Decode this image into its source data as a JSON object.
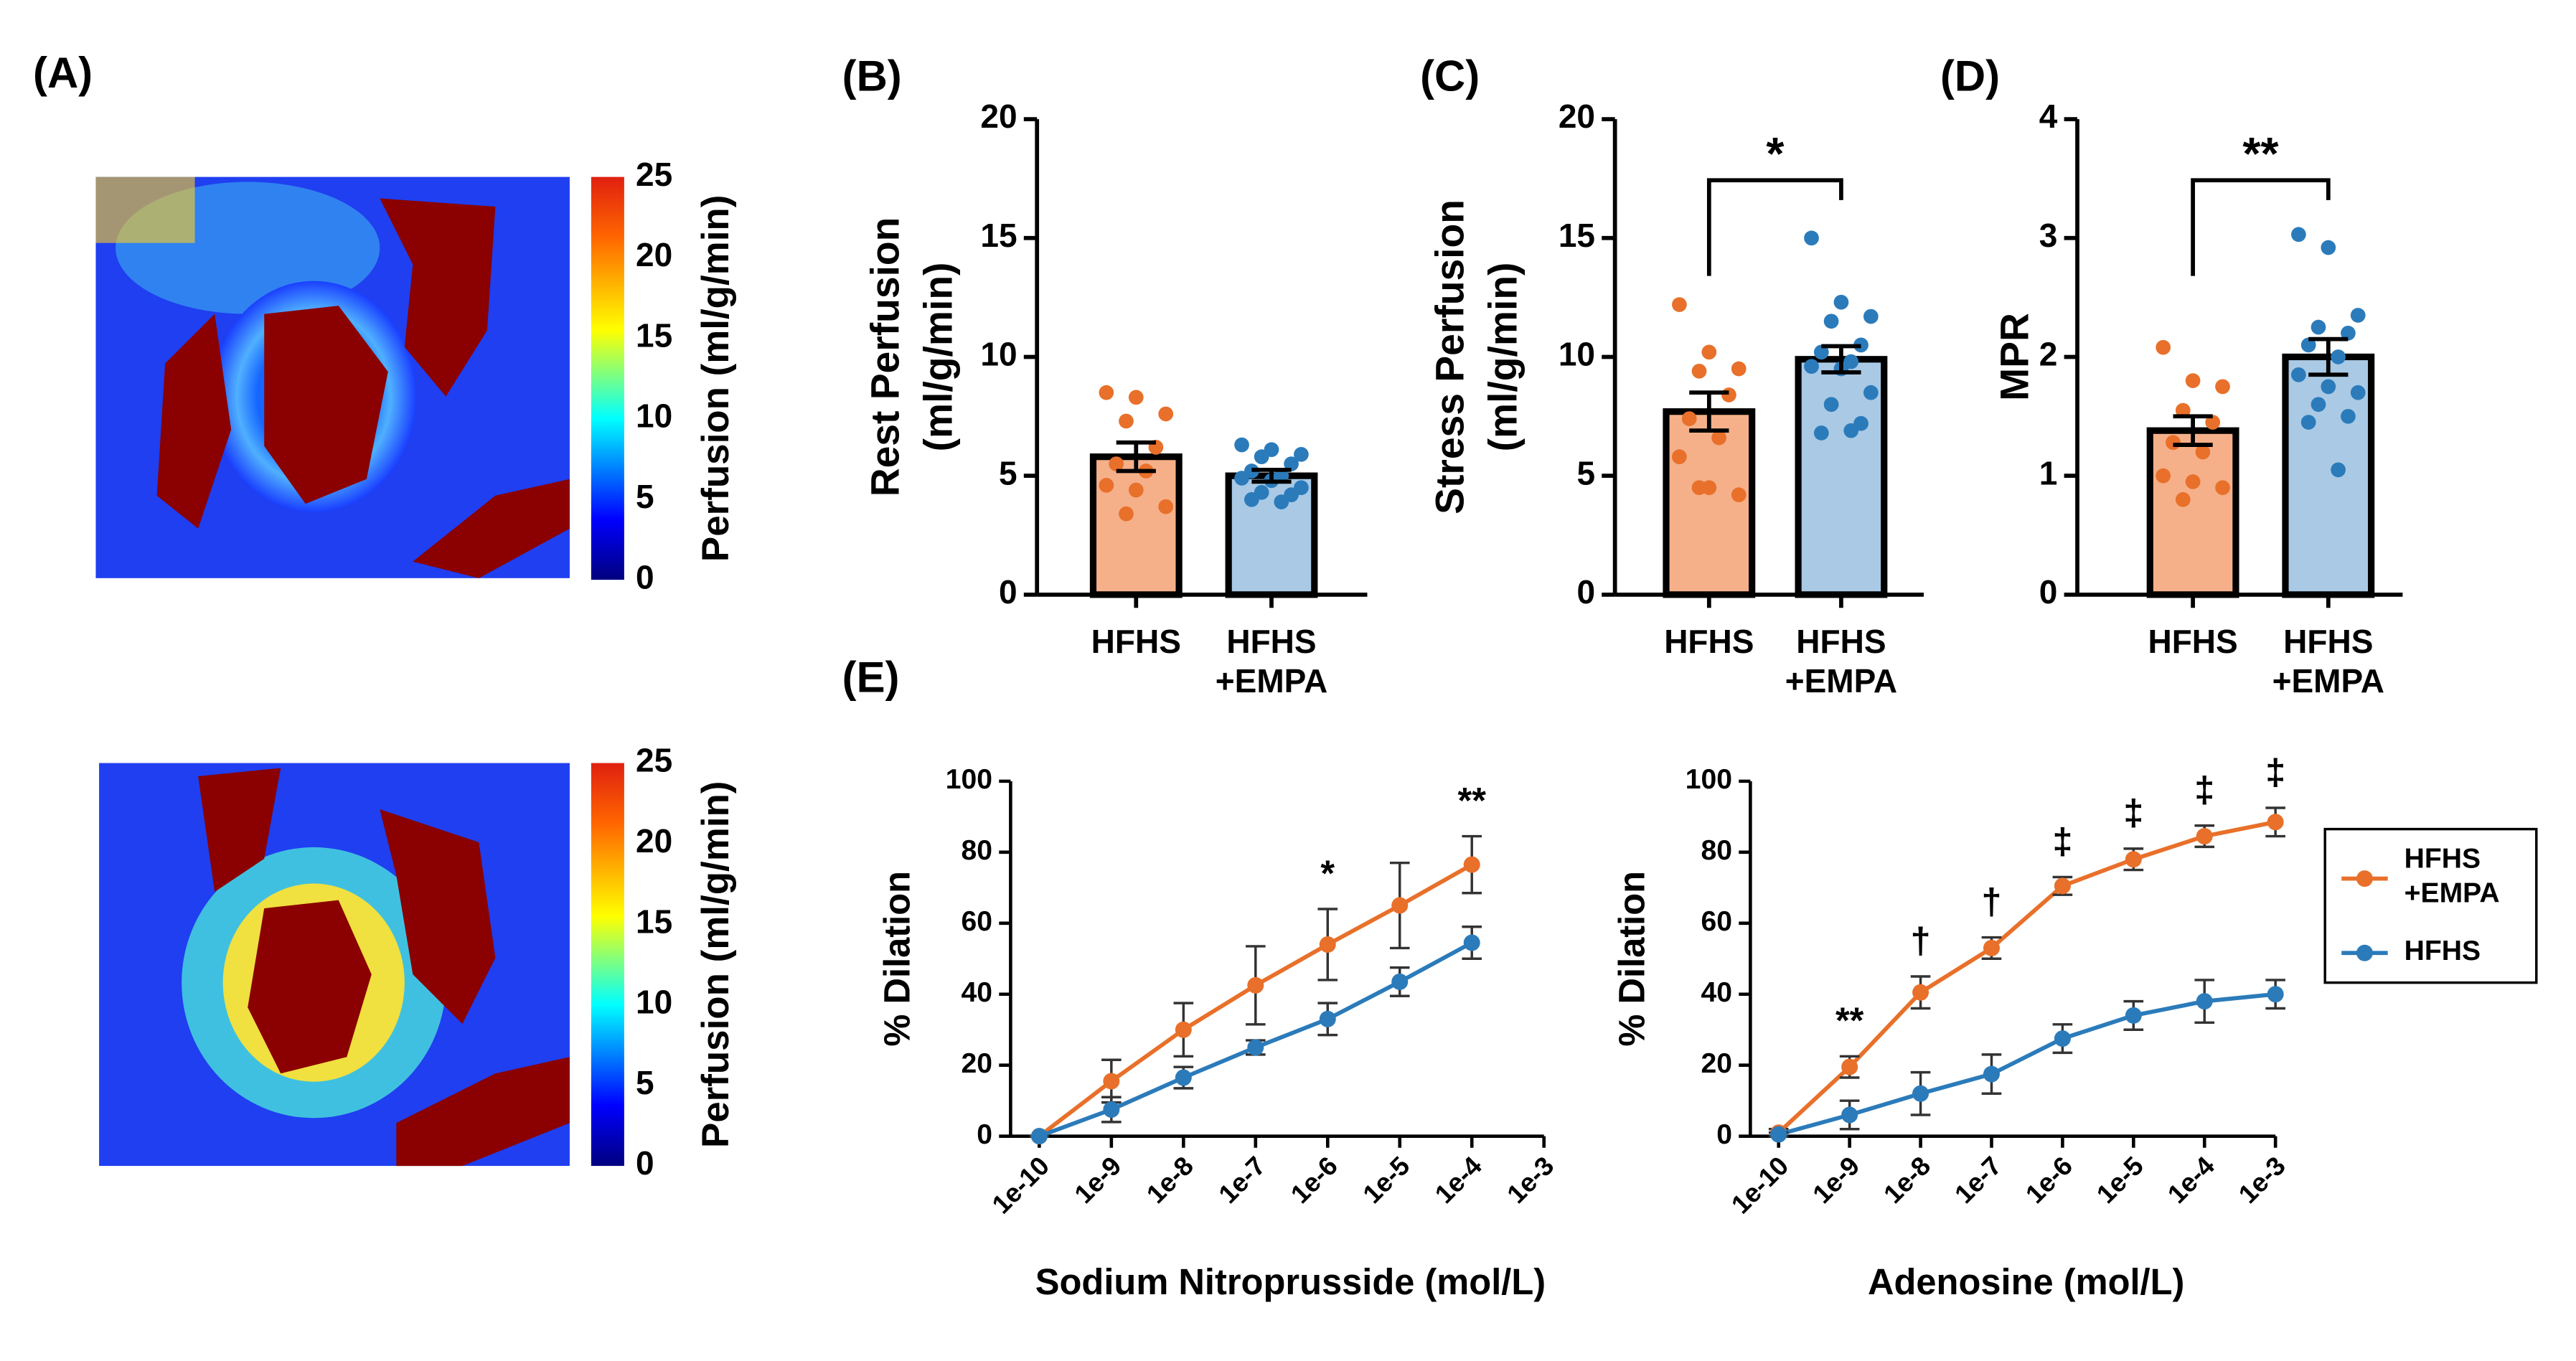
{
  "chart_data": [
    {
      "type": "colorbar",
      "panel_label": "(A)",
      "ylim": [
        0,
        25
      ],
      "yticks": [
        0,
        5,
        10,
        15,
        20,
        25
      ],
      "ylabel": "Perfusion (ml/g/min)"
    },
    {
      "type": "colorbar",
      "ylim": [
        0,
        25
      ],
      "yticks": [
        0,
        5,
        10,
        15,
        20,
        25
      ],
      "ylabel": "Perfusion (ml/g/min)"
    },
    {
      "type": "bar",
      "panel_label": "(B)",
      "ylabel": [
        "Rest Perfusion",
        "(ml/g/min)"
      ],
      "categories": [
        "HFHS",
        "HFHS +EMPA"
      ],
      "values": [
        5.8,
        5.0
      ],
      "errors": [
        0.6,
        0.25
      ],
      "bar_colors": [
        "#f5b08a",
        "#a9c9e5"
      ],
      "point_colors": [
        "#e8702a",
        "#2b7bba"
      ],
      "points": [
        [
          8.5,
          8.3,
          7.6,
          7.3,
          6.2,
          5.5,
          5.2,
          4.6,
          4.4,
          3.7,
          3.4
        ],
        [
          6.3,
          6.1,
          5.9,
          5.8,
          5.5,
          5.2,
          5.0,
          4.9,
          4.8,
          4.5,
          4.3,
          4.2,
          4.0,
          3.9
        ]
      ],
      "ylim": [
        0,
        20
      ],
      "yticks": [
        0,
        5,
        10,
        15,
        20
      ]
    },
    {
      "type": "bar",
      "panel_label": "(C)",
      "ylabel": [
        "Stress Perfusion",
        "(ml/g/min)"
      ],
      "categories": [
        "HFHS",
        "HFHS +EMPA"
      ],
      "values": [
        7.7,
        9.9
      ],
      "errors": [
        0.8,
        0.55
      ],
      "bar_colors": [
        "#f5b08a",
        "#a9c9e5"
      ],
      "point_colors": [
        "#e8702a",
        "#2b7bba"
      ],
      "points": [
        [
          12.2,
          10.2,
          9.5,
          9.4,
          8.4,
          7.4,
          6.6,
          5.8,
          4.5,
          4.2,
          4.5
        ],
        [
          15,
          12.3,
          11.7,
          11.5,
          10.5,
          10.2,
          9.8,
          9.6,
          9.5,
          8.5,
          8.0,
          7.2,
          6.8,
          6.9
        ]
      ],
      "significance": "*",
      "ylim": [
        0,
        20
      ],
      "yticks": [
        0,
        5,
        10,
        15,
        20
      ]
    },
    {
      "type": "bar",
      "panel_label": "(D)",
      "ylabel": [
        "MPR"
      ],
      "categories": [
        "HFHS",
        "HFHS +EMPA"
      ],
      "values": [
        1.38,
        2.0
      ],
      "errors": [
        0.12,
        0.15
      ],
      "bar_colors": [
        "#f5b08a",
        "#a9c9e5"
      ],
      "point_colors": [
        "#e8702a",
        "#2b7bba"
      ],
      "points": [
        [
          2.08,
          1.8,
          1.75,
          1.55,
          1.45,
          1.28,
          1.2,
          1.0,
          0.95,
          0.9,
          0.8
        ],
        [
          3.03,
          2.92,
          2.35,
          2.25,
          2.2,
          2.1,
          2.0,
          1.85,
          1.75,
          1.7,
          1.6,
          1.5,
          1.45,
          1.05
        ]
      ],
      "significance": "**",
      "ylim": [
        0,
        4
      ],
      "yticks": [
        0,
        1,
        2,
        3,
        4
      ]
    },
    {
      "type": "line",
      "panel_label": "(E)",
      "xlabel": "Sodium Nitroprusside (mol/L)",
      "ylabel": "% Dilation",
      "xscale": "log",
      "x": [
        1e-10,
        1e-09,
        1e-08,
        1e-07,
        1e-06,
        1e-05,
        0.0001
      ],
      "series": [
        {
          "name": "HFHS +EMPA",
          "color": "#e8702a",
          "values": [
            0,
            15.5,
            30,
            42.5,
            54,
            65,
            76.5
          ],
          "errors": [
            0,
            6,
            7.5,
            11,
            10,
            12,
            8
          ]
        },
        {
          "name": "HFHS",
          "color": "#2b7bba",
          "values": [
            0,
            7.5,
            16.5,
            25,
            33,
            43.5,
            54.5
          ],
          "errors": [
            0,
            3.5,
            3,
            2,
            4.5,
            4,
            4.5
          ]
        }
      ],
      "annotations": [
        {
          "x": 1e-06,
          "text": "*"
        },
        {
          "x": 0.0001,
          "text": "**"
        }
      ],
      "xlim": [
        4e-11,
        0.001
      ],
      "xticks": [
        {
          "value": 1e-10,
          "label": "1e-10"
        },
        {
          "value": 1e-09,
          "label": "1e-9"
        },
        {
          "value": 1e-08,
          "label": "1e-8"
        },
        {
          "value": 1e-07,
          "label": "1e-7"
        },
        {
          "value": 1e-06,
          "label": "1e-6"
        },
        {
          "value": 1e-05,
          "label": "1e-5"
        },
        {
          "value": 0.0001,
          "label": "1e-4"
        },
        {
          "value": 0.001,
          "label": "1e-3"
        }
      ],
      "ylim": [
        0,
        100
      ],
      "yticks": [
        0,
        20,
        40,
        60,
        80,
        100
      ]
    },
    {
      "type": "line",
      "xlabel": "Adenosine (mol/L)",
      "ylabel": "% Dilation",
      "xscale": "log",
      "x": [
        1e-10,
        1e-09,
        1e-08,
        1e-07,
        1e-06,
        1e-05,
        0.0001,
        0.001
      ],
      "series": [
        {
          "name": "HFHS +EMPA",
          "color": "#e8702a",
          "values": [
            1,
            19.5,
            40.5,
            53,
            70.5,
            78,
            84.5,
            88.5
          ],
          "errors": [
            1,
            3,
            4.5,
            3,
            2.5,
            3,
            3,
            4
          ]
        },
        {
          "name": "HFHS",
          "color": "#2b7bba",
          "values": [
            0.5,
            6,
            12,
            17.5,
            27.5,
            34,
            38,
            40
          ],
          "errors": [
            0.5,
            4,
            6,
            5.5,
            4,
            4,
            6,
            4
          ]
        }
      ],
      "annotations": [
        {
          "x": 1e-09,
          "text": "**"
        },
        {
          "x": 1e-08,
          "text": "†"
        },
        {
          "x": 1e-07,
          "text": "†"
        },
        {
          "x": 1e-06,
          "text": "‡"
        },
        {
          "x": 1e-05,
          "text": "‡"
        },
        {
          "x": 0.0001,
          "text": "‡"
        },
        {
          "x": 0.001,
          "text": "‡"
        }
      ],
      "legend": "right",
      "xlim": [
        4e-11,
        0.001
      ],
      "xticks": [
        {
          "value": 1e-10,
          "label": "1e-10"
        },
        {
          "value": 1e-09,
          "label": "1e-9"
        },
        {
          "value": 1e-08,
          "label": "1e-8"
        },
        {
          "value": 1e-07,
          "label": "1e-7"
        },
        {
          "value": 1e-06,
          "label": "1e-6"
        },
        {
          "value": 1e-05,
          "label": "1e-5"
        },
        {
          "value": 0.0001,
          "label": "1e-4"
        },
        {
          "value": 0.001,
          "label": "1e-3"
        }
      ],
      "ylim": [
        0,
        100
      ],
      "yticks": [
        0,
        20,
        40,
        60,
        80,
        100
      ]
    }
  ]
}
